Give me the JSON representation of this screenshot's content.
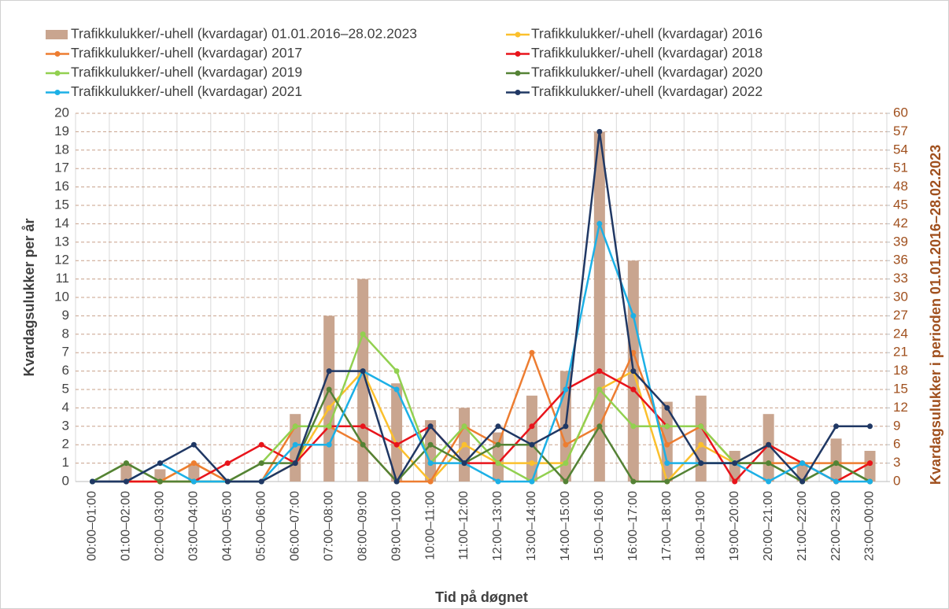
{
  "chart_data": {
    "type": "combo",
    "y_label": "Kvardagsulukker per år",
    "y2_label": "Kvardagsulukker i perioden 01.01.2016–28.02.2023",
    "x_label": "Tid på døgnet",
    "categories": [
      "00:00–01:00",
      "01:00–02:00",
      "02:00–03:00",
      "03:00–04:00",
      "04:00–05:00",
      "05:00–06:00",
      "06:00–07:00",
      "07:00–08:00",
      "08:00–09:00",
      "09:00–10:00",
      "10:00–11:00",
      "11:00–12:00",
      "12:00–13:00",
      "13:00–14:00",
      "14:00–15:00",
      "15:00–16:00",
      "16:00–17:00",
      "17:00–18:00",
      "18:00–19:00",
      "19:00–20:00",
      "20:00–21:00",
      "21:00–22:00",
      "22:00–23:00",
      "23:00–00:00"
    ],
    "ylim": [
      0,
      20
    ],
    "yticks": [
      0,
      1,
      2,
      3,
      4,
      5,
      6,
      7,
      8,
      9,
      10,
      11,
      12,
      13,
      14,
      15,
      16,
      17,
      18,
      19,
      20
    ],
    "y2lim": [
      0,
      60
    ],
    "y2ticks": [
      0,
      3,
      6,
      9,
      12,
      15,
      18,
      21,
      24,
      27,
      30,
      33,
      36,
      39,
      42,
      45,
      48,
      51,
      54,
      57,
      60
    ],
    "grid": true,
    "legend": "top",
    "series": [
      {
        "name": "Trafikkulukker/-uhell (kvardagar) 01.01.2016–28.02.2023",
        "type": "bar",
        "axis": "y2",
        "color": "#c9a58f",
        "values": [
          0,
          3,
          2,
          3,
          0,
          0,
          11,
          27,
          33,
          16,
          10,
          12,
          8,
          14,
          18,
          57,
          36,
          13,
          14,
          5,
          11,
          3,
          7,
          5
        ]
      },
      {
        "name": "Trafikkulukker/-uhell (kvardagar) 2016",
        "type": "line",
        "color": "#fbc02d",
        "values": [
          0,
          0,
          0,
          1,
          0,
          0,
          1,
          4,
          6,
          2,
          0,
          2,
          1,
          1,
          1,
          5,
          6,
          0,
          2,
          1,
          2,
          1,
          0,
          1
        ]
      },
      {
        "name": "Trafikkulukker/-uhell (kvardagar) 2017",
        "type": "line",
        "color": "#ed7d31",
        "values": [
          0,
          0,
          0,
          1,
          0,
          0,
          3,
          3,
          2,
          0,
          0,
          3,
          2,
          7,
          2,
          3,
          7,
          2,
          3,
          1,
          1,
          1,
          1,
          1
        ]
      },
      {
        "name": "Trafikkulukker/-uhell (kvardagar) 2018",
        "type": "line",
        "color": "#e8141b",
        "values": [
          0,
          0,
          0,
          0,
          1,
          2,
          1,
          3,
          3,
          2,
          3,
          1,
          1,
          3,
          5,
          6,
          5,
          3,
          3,
          0,
          2,
          1,
          0,
          1
        ]
      },
      {
        "name": "Trafikkulukker/-uhell (kvardagar) 2019",
        "type": "line",
        "color": "#92d050",
        "values": [
          0,
          1,
          0,
          0,
          0,
          1,
          3,
          3,
          8,
          6,
          1,
          3,
          1,
          0,
          1,
          5,
          3,
          3,
          3,
          1,
          1,
          0,
          1,
          0
        ]
      },
      {
        "name": "Trafikkulukker/-uhell (kvardagar) 2020",
        "type": "line",
        "color": "#548235",
        "values": [
          0,
          1,
          0,
          0,
          0,
          1,
          1,
          5,
          2,
          0,
          2,
          1,
          2,
          2,
          0,
          3,
          0,
          0,
          1,
          1,
          1,
          0,
          1,
          0
        ]
      },
      {
        "name": "Trafikkulukker/-uhell (kvardagar) 2021",
        "type": "line",
        "color": "#1cb0e6",
        "values": [
          0,
          0,
          1,
          0,
          0,
          0,
          2,
          2,
          6,
          5,
          1,
          1,
          0,
          0,
          5,
          14,
          9,
          1,
          1,
          1,
          0,
          1,
          0,
          0
        ]
      },
      {
        "name": "Trafikkulukker/-uhell (kvardagar) 2022",
        "type": "line",
        "color": "#203864",
        "values": [
          0,
          0,
          1,
          2,
          0,
          0,
          1,
          6,
          6,
          0,
          3,
          1,
          3,
          2,
          3,
          19,
          6,
          4,
          1,
          1,
          2,
          0,
          3,
          3
        ]
      }
    ]
  }
}
